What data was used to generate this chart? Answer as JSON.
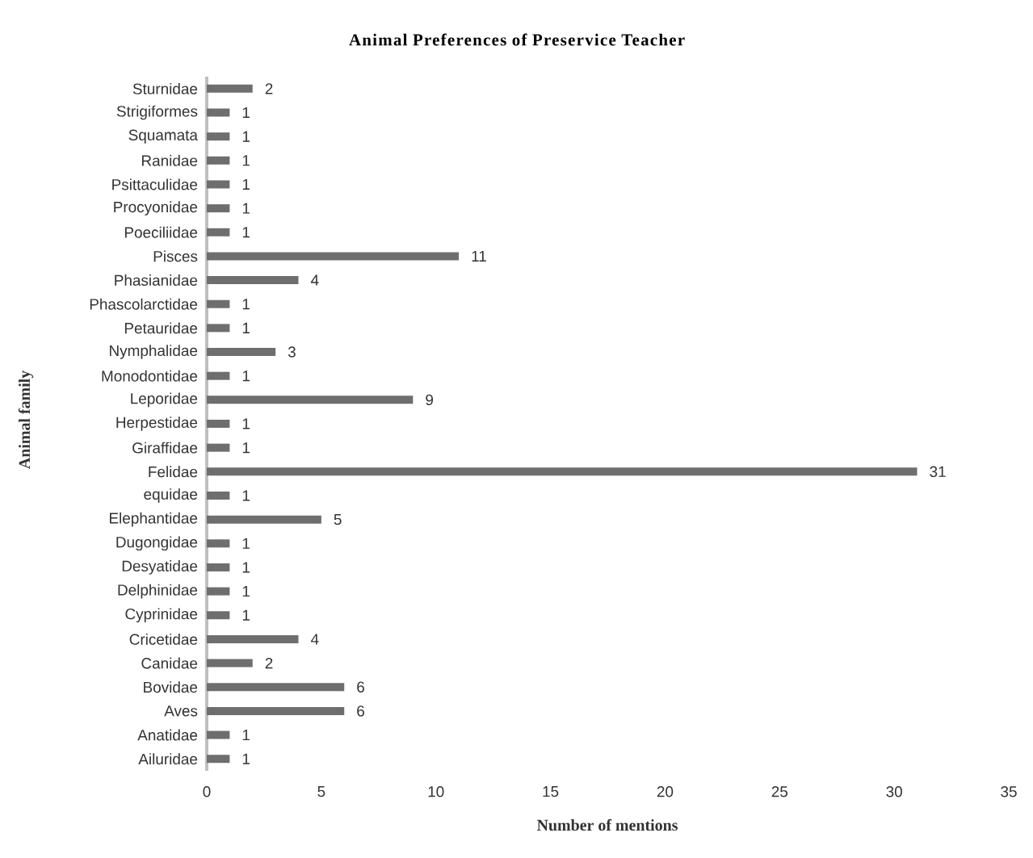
{
  "chart_data": {
    "type": "bar",
    "orientation": "horizontal",
    "title": "Animal Preferences of Preservice Teacher",
    "xlabel": "Number of mentions",
    "ylabel": "Animal family",
    "categories": [
      "Sturnidae",
      "Strigiformes",
      "Squamata",
      "Ranidae",
      "Psittaculidae",
      "Procyonidae",
      "Poeciliidae",
      "Pisces",
      "Phasianidae",
      "Phascolarctidae",
      "Petauridae",
      "Nymphalidae",
      "Monodontidae",
      "Leporidae",
      "Herpestidae",
      "Giraffidae",
      "Felidae",
      "equidae",
      "Elephantidae",
      "Dugongidae",
      "Desyatidae",
      "Delphinidae",
      "Cyprinidae",
      "Cricetidae",
      "Canidae",
      "Bovidae",
      "Aves",
      "Anatidae",
      "Ailuridae"
    ],
    "values": [
      2,
      1,
      1,
      1,
      1,
      1,
      1,
      11,
      4,
      1,
      1,
      3,
      1,
      9,
      1,
      1,
      31,
      1,
      5,
      1,
      1,
      1,
      1,
      4,
      2,
      6,
      6,
      1,
      1
    ],
    "color": "#6e6e6e",
    "xlim": [
      0,
      35
    ],
    "xticks": [
      0,
      5,
      10,
      15,
      20,
      25,
      30,
      35
    ],
    "data_labels": true
  }
}
